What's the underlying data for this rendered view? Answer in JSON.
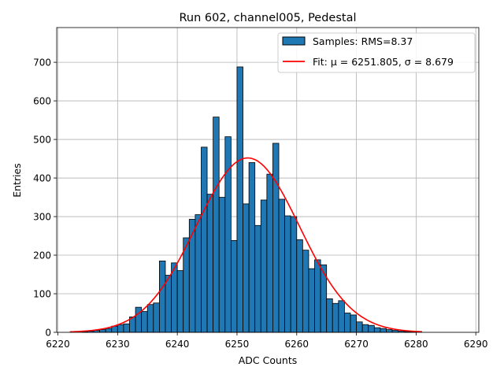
{
  "chart_data": {
    "type": "histogram",
    "title": "Run 602, channel005, Pedestal",
    "xlabel": "ADC Counts",
    "ylabel": "Entries",
    "xlim": [
      6219.8,
      6290.5
    ],
    "ylim": [
      0,
      790
    ],
    "xticks": [
      6220,
      6230,
      6240,
      6250,
      6260,
      6270,
      6280,
      6290
    ],
    "yticks": [
      0,
      100,
      200,
      300,
      400,
      500,
      600,
      700
    ],
    "xtick_labels": [
      "6220",
      "6230",
      "6240",
      "6250",
      "6260",
      "6270",
      "6280",
      "6290"
    ],
    "ytick_labels": [
      "0",
      "100",
      "200",
      "300",
      "400",
      "500",
      "600",
      "700"
    ],
    "grid": true,
    "legend_position": "upper right",
    "bar_color": "#1f77b4",
    "bar_edge": "#000000",
    "fit_color": "#ff0000",
    "bins": {
      "left": [
        6224,
        6225,
        6226,
        6227,
        6228,
        6229,
        6230,
        6231,
        6232,
        6233,
        6234,
        6235,
        6236,
        6237,
        6238,
        6239,
        6240,
        6241,
        6242,
        6243,
        6244,
        6245,
        6246,
        6247,
        6248,
        6249,
        6250,
        6251,
        6252,
        6253,
        6254,
        6255,
        6256,
        6257,
        6258,
        6259,
        6260,
        6261,
        6262,
        6263,
        6264,
        6265,
        6266,
        6267,
        6268,
        6269,
        6270,
        6271,
        6272,
        6273,
        6274,
        6275,
        6276,
        6277,
        6278,
        6279
      ],
      "width": 1,
      "counts": [
        2,
        3,
        5,
        7,
        10,
        16,
        20,
        22,
        40,
        65,
        54,
        72,
        76,
        185,
        148,
        180,
        160,
        245,
        293,
        305,
        480,
        358,
        558,
        350,
        507,
        238,
        688,
        333,
        440,
        277,
        343,
        410,
        490,
        345,
        302,
        300,
        240,
        213,
        165,
        188,
        175,
        87,
        75,
        82,
        50,
        45,
        27,
        20,
        18,
        12,
        10,
        7,
        5,
        3,
        2,
        1
      ]
    },
    "fit": {
      "mu": 6251.805,
      "sigma": 8.679,
      "peak": 452,
      "x_range": [
        6222,
        6281
      ]
    },
    "legend": [
      {
        "label": "Samples: RMS=8.37",
        "kind": "patch"
      },
      {
        "label": "Fit: μ = 6251.805, σ = 8.679",
        "kind": "line"
      }
    ]
  }
}
